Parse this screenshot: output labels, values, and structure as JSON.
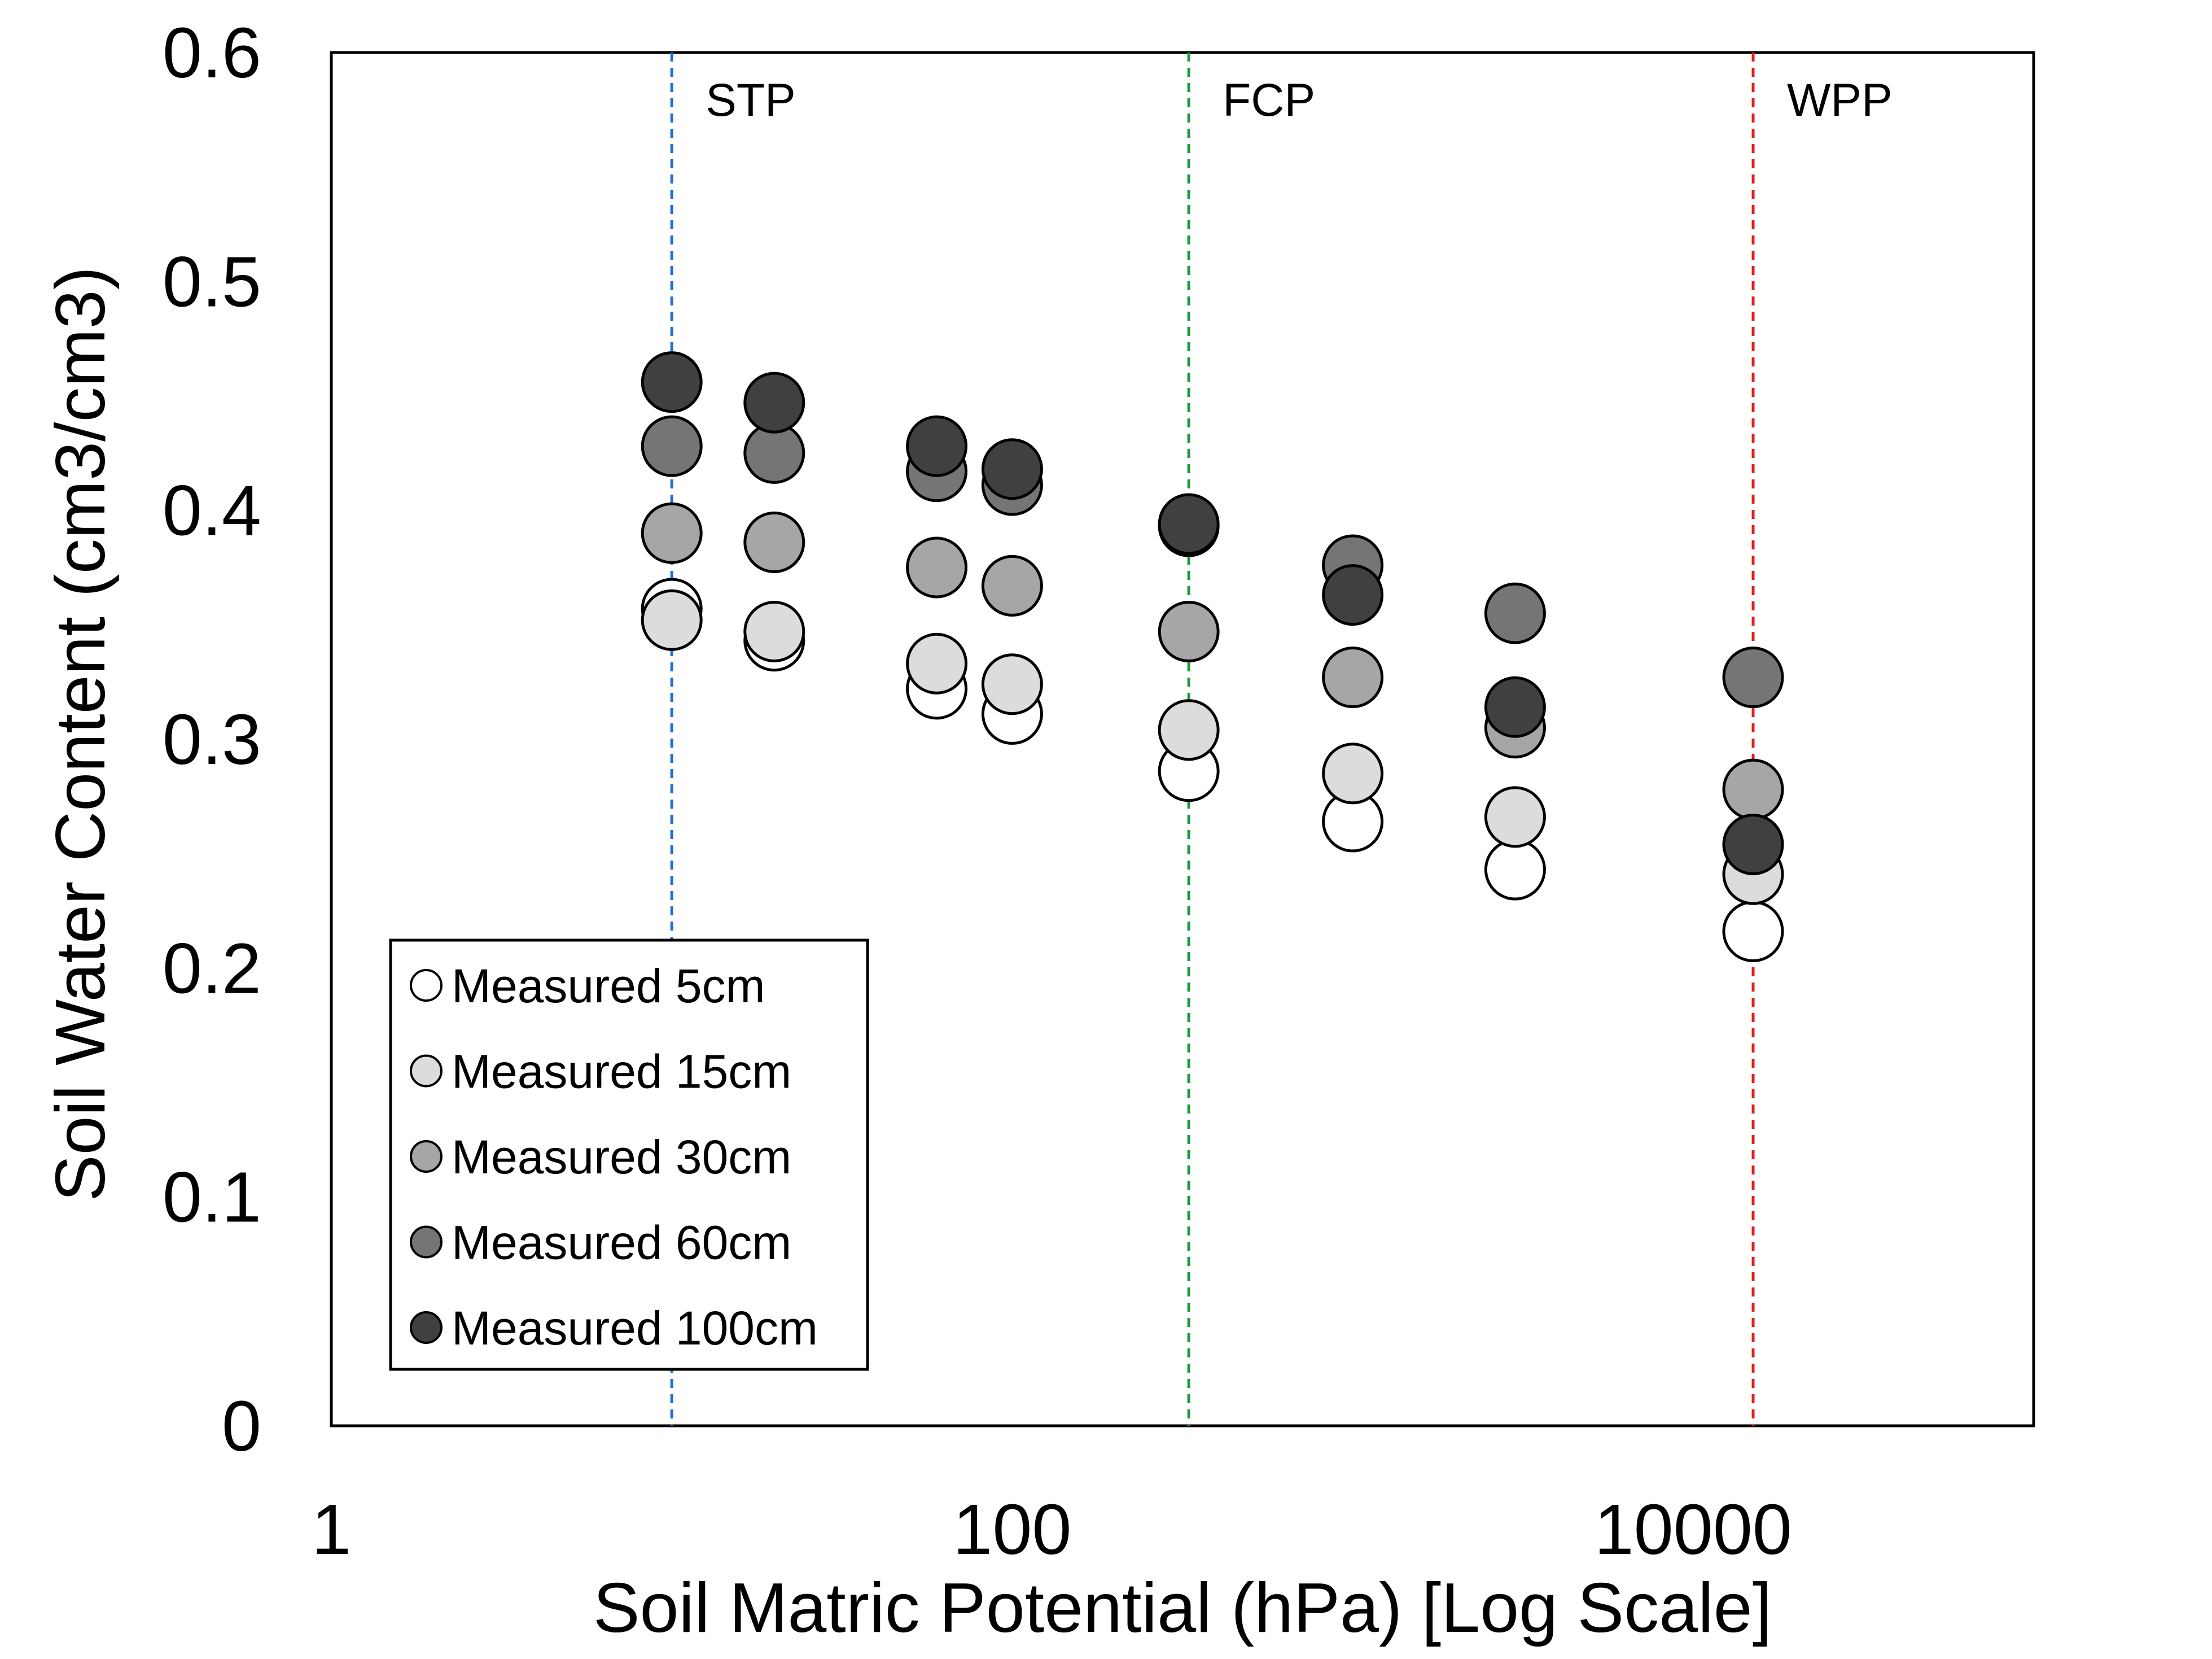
{
  "chart_data": {
    "type": "scatter",
    "title": "",
    "xlabel": "Soil Matric Potential (hPa) [Log Scale]",
    "ylabel": "Soil Water Content (cm3/cm3)",
    "x_scale": "log",
    "xlim": [
      1,
      100000
    ],
    "ylim": [
      0,
      0.6
    ],
    "x_ticks": [
      {
        "value": 1,
        "label": "1"
      },
      {
        "value": 100,
        "label": "100"
      },
      {
        "value": 10000,
        "label": "10000"
      }
    ],
    "y_ticks": [
      {
        "value": 0,
        "label": "0"
      },
      {
        "value": 0.1,
        "label": "0.1"
      },
      {
        "value": 0.2,
        "label": "0.2"
      },
      {
        "value": 0.3,
        "label": "0.3"
      },
      {
        "value": 0.4,
        "label": "0.4"
      },
      {
        "value": 0.5,
        "label": "0.5"
      },
      {
        "value": 0.6,
        "label": "0.6"
      }
    ],
    "grid": false,
    "legend_position": "bottom-left",
    "reference_lines": [
      {
        "label": "STP",
        "x": 10,
        "color": "#1f6fd0"
      },
      {
        "label": "FCP",
        "x": 330,
        "color": "#1a9a3a"
      },
      {
        "label": "WPP",
        "x": 15000,
        "color": "#e0201a"
      }
    ],
    "x": [
      10,
      20,
      60,
      100,
      330,
      1000,
      3000,
      15000
    ],
    "series": [
      {
        "name": "Measured 5cm",
        "color": "#ffffff",
        "values": [
          0.357,
          0.343,
          0.322,
          0.311,
          0.286,
          0.264,
          0.243,
          0.216
        ]
      },
      {
        "name": "Measured 15cm",
        "color": "#dcdcdc",
        "values": [
          0.352,
          0.347,
          0.333,
          0.324,
          0.304,
          0.285,
          0.266,
          0.241
        ]
      },
      {
        "name": "Measured 30cm",
        "color": "#a6a6a6",
        "values": [
          0.39,
          0.386,
          0.375,
          0.367,
          0.347,
          0.327,
          0.305,
          0.278
        ]
      },
      {
        "name": "Measured 60cm",
        "color": "#757575",
        "values": [
          0.428,
          0.425,
          0.417,
          0.411,
          0.393,
          0.376,
          0.355,
          0.327
        ]
      },
      {
        "name": "Measured 100cm",
        "color": "#404040",
        "values": [
          0.456,
          0.447,
          0.428,
          0.418,
          0.394,
          0.363,
          0.314,
          0.254
        ]
      }
    ]
  }
}
